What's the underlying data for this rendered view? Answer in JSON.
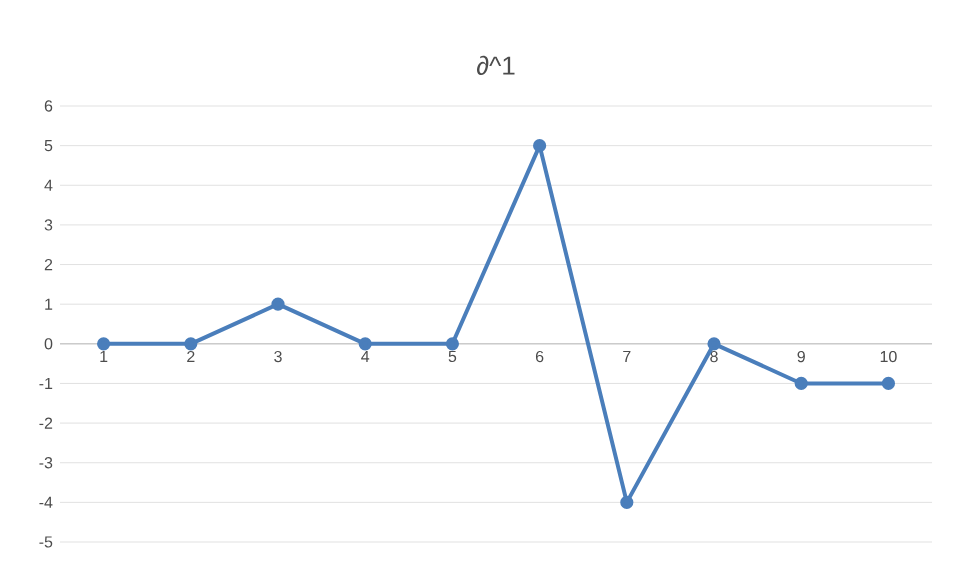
{
  "chart_data": {
    "type": "line",
    "title": "∂^1",
    "categories": [
      "1",
      "2",
      "3",
      "4",
      "5",
      "6",
      "7",
      "8",
      "9",
      "10"
    ],
    "series": [
      {
        "color": "#4a7ebb",
        "values": [
          0,
          0,
          1,
          0,
          0,
          5,
          -4,
          0,
          -1,
          -1
        ]
      }
    ],
    "ylim": [
      -5,
      6
    ],
    "yticks": [
      -5,
      -4,
      -3,
      -2,
      -1,
      0,
      1,
      2,
      3,
      4,
      5,
      6
    ],
    "grid": "y",
    "marker": "circle",
    "line_style": "solid"
  }
}
